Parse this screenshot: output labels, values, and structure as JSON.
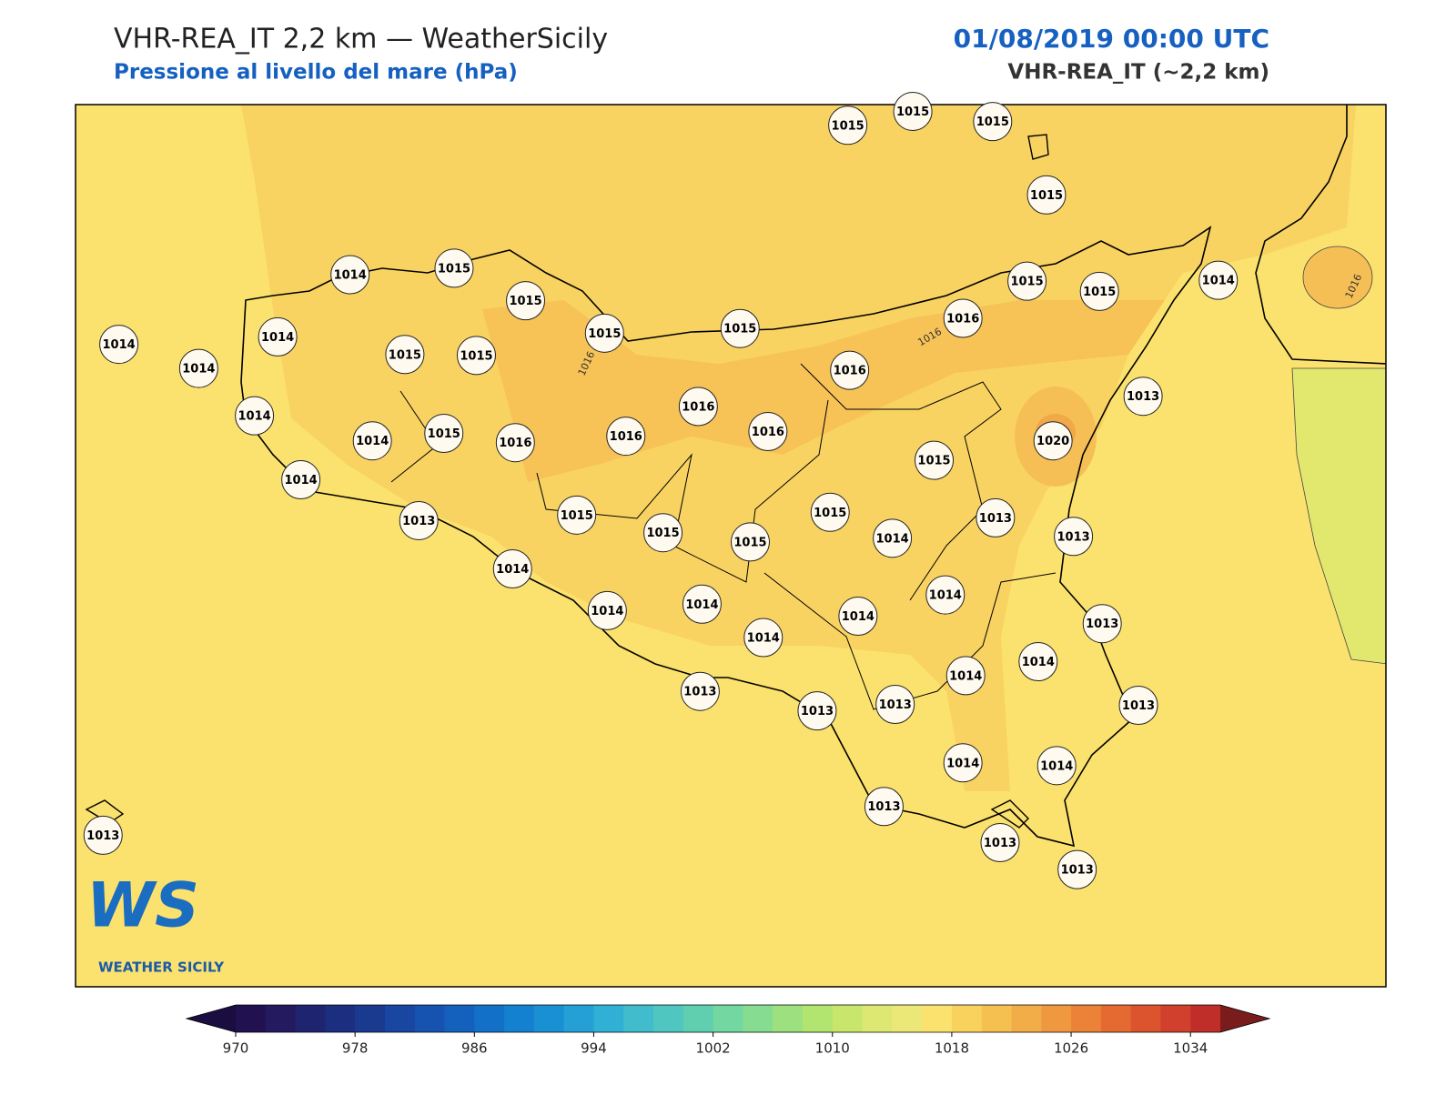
{
  "header": {
    "title": "VHR-REA_IT 2,2 km — WeatherSicily",
    "subtitle": "Pressione al livello del mare (hPa)",
    "datetime": "01/08/2019 00:00 UTC",
    "model": "VHR-REA_IT (~2,2 km)"
  },
  "stations": [
    1015,
    1015,
    1015,
    1015,
    1014,
    1015,
    1015,
    1015,
    1015,
    1015,
    1015,
    1014,
    1014,
    1014,
    1015,
    1015,
    1016,
    1014,
    1016,
    1016,
    1013,
    1014,
    1014,
    1015,
    1016,
    1016,
    1016,
    1020,
    1015,
    1014,
    1013,
    1015,
    1015,
    1015,
    1015,
    1014,
    1013,
    1013,
    1014,
    1014,
    1014,
    1014,
    1014,
    1014,
    1013,
    1014,
    1014,
    1013,
    1013,
    1013,
    1013,
    1014,
    1014,
    1013,
    1013,
    1013,
    1013
  ],
  "contour_labels": [
    1016,
    1016,
    1016
  ],
  "logo": {
    "mark": "WS",
    "name": "WEATHER SICILY"
  },
  "colorbar": {
    "range": [
      970,
      1036
    ],
    "ticks": [
      970,
      978,
      986,
      994,
      1002,
      1010,
      1018,
      1026,
      1034
    ],
    "under_color": "#1a0d3f",
    "over_color": "#7a1c1c",
    "colors": [
      "#221150",
      "#231a60",
      "#1f2470",
      "#1c2e80",
      "#1a3a90",
      "#1846a0",
      "#1653b0",
      "#1461bd",
      "#1270c8",
      "#1480d0",
      "#1a90d4",
      "#24a0d6",
      "#30b0d4",
      "#40bccc",
      "#50c6c0",
      "#60cfb0",
      "#72d7a0",
      "#86dc90",
      "#9ce080",
      "#b2e470",
      "#c8e66c",
      "#dce872",
      "#ece878",
      "#fbe26e",
      "#f8d25c",
      "#f5c050",
      "#f2ac48",
      "#ef9840",
      "#eb8238",
      "#e56a32",
      "#dc542e",
      "#d0402c",
      "#c02e2a"
    ]
  }
}
